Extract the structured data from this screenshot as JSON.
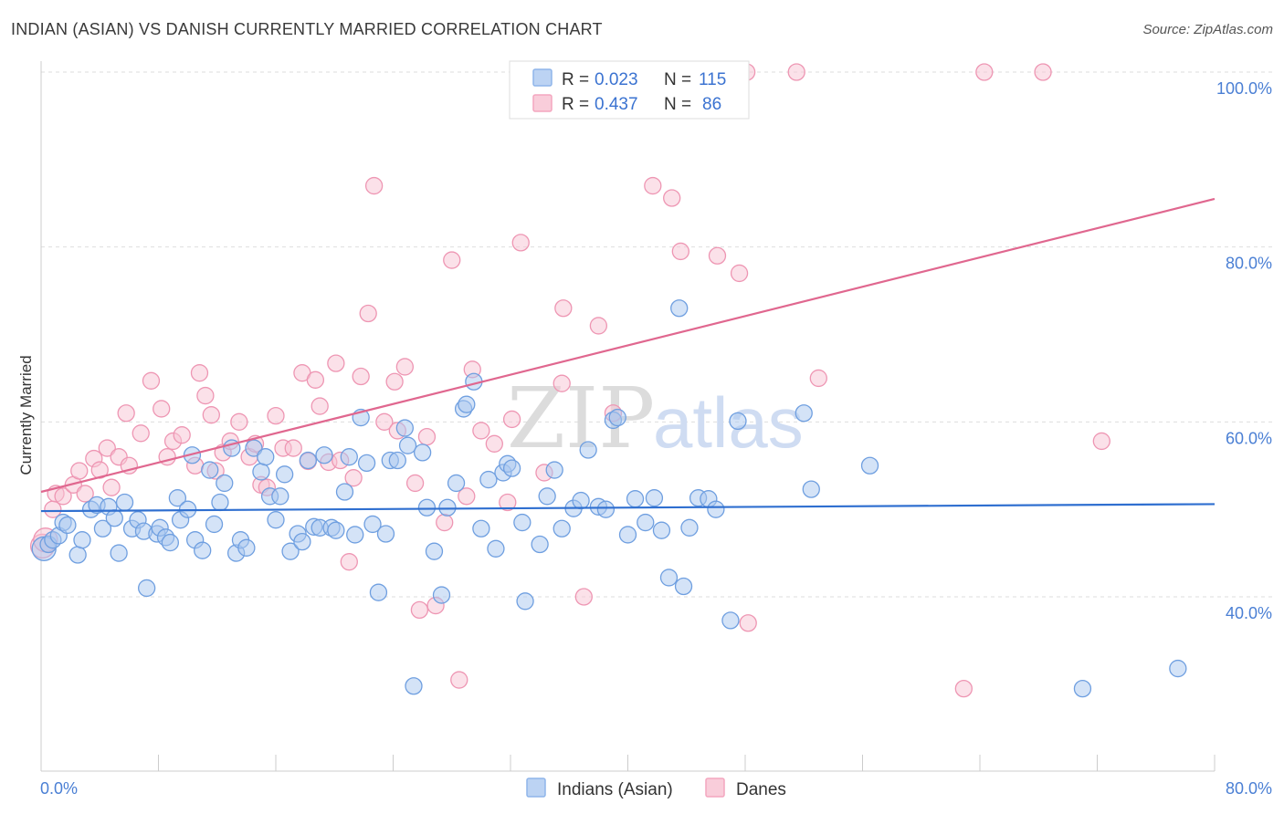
{
  "header": {
    "title": "INDIAN (ASIAN) VS DANISH CURRENTLY MARRIED CORRELATION CHART",
    "source": "Source: ZipAtlas.com"
  },
  "watermark": {
    "part1": "ZIP",
    "part2": "atlas"
  },
  "legend": {
    "rows": [
      {
        "r_label": "R =",
        "r_value": "0.023",
        "n_label": "N =",
        "n_value": "115",
        "color": "#8fb5ea"
      },
      {
        "r_label": "R =",
        "r_value": "0.437",
        "n_label": "N =",
        "n_value": "86",
        "color": "#f4a6bf"
      }
    ]
  },
  "bottom_legend": [
    {
      "label": "Indians (Asian)",
      "color": "#8fb5ea"
    },
    {
      "label": "Danes",
      "color": "#f4a6bf"
    }
  ],
  "chart_data": {
    "type": "scatter",
    "ylabel": "Currently Married",
    "xlim": [
      0,
      80
    ],
    "ylim": [
      20,
      102
    ],
    "x_tick_labels": [
      {
        "value": 0,
        "label": "0.0%"
      },
      {
        "value": 80,
        "label": "80.0%"
      }
    ],
    "y_tick_labels": [
      {
        "value": 100,
        "label": "100.0%"
      },
      {
        "value": 80,
        "label": "80.0%"
      },
      {
        "value": 60,
        "label": "60.0%"
      },
      {
        "value": 40,
        "label": "40.0%"
      }
    ],
    "grid": "horizontal dashed",
    "colors": {
      "indians_fill": "#aac8f0",
      "indians_stroke": "#6f9fe0",
      "indians_line": "#2f6fd0",
      "danes_fill": "#f8c3d3",
      "danes_stroke": "#ee96b3",
      "danes_line": "#e0678f"
    },
    "series": [
      {
        "name": "Indians (Asian)",
        "trend": [
          [
            0,
            49.8
          ],
          [
            80,
            50.6
          ]
        ],
        "points": [
          [
            0.2,
            45.5
          ],
          [
            0.5,
            46
          ],
          [
            0.8,
            46.5
          ],
          [
            1.2,
            47
          ],
          [
            1.5,
            48.5
          ],
          [
            1.8,
            48.2
          ],
          [
            2.5,
            44.8
          ],
          [
            2.8,
            46.5
          ],
          [
            3.4,
            50
          ],
          [
            3.8,
            50.5
          ],
          [
            4.2,
            47.8
          ],
          [
            4.6,
            50.3
          ],
          [
            5,
            49
          ],
          [
            5.3,
            45
          ],
          [
            5.7,
            50.8
          ],
          [
            6.2,
            47.8
          ],
          [
            6.6,
            48.8
          ],
          [
            7,
            47.5
          ],
          [
            7.2,
            41
          ],
          [
            7.9,
            47.2
          ],
          [
            8.1,
            47.9
          ],
          [
            8.5,
            46.8
          ],
          [
            8.8,
            46.2
          ],
          [
            9.3,
            51.3
          ],
          [
            9.5,
            48.8
          ],
          [
            10,
            50
          ],
          [
            10.3,
            56.2
          ],
          [
            10.5,
            46.5
          ],
          [
            11,
            45.3
          ],
          [
            11.5,
            54.5
          ],
          [
            11.8,
            48.3
          ],
          [
            12.2,
            50.8
          ],
          [
            12.5,
            53
          ],
          [
            13,
            57
          ],
          [
            13.3,
            45
          ],
          [
            13.6,
            46.5
          ],
          [
            14,
            45.6
          ],
          [
            14.5,
            57
          ],
          [
            15,
            54.3
          ],
          [
            15.3,
            56
          ],
          [
            15.6,
            51.5
          ],
          [
            16,
            48.8
          ],
          [
            16.3,
            51.5
          ],
          [
            16.6,
            54
          ],
          [
            17,
            45.2
          ],
          [
            17.5,
            47.2
          ],
          [
            17.8,
            46.3
          ],
          [
            18.2,
            55.6
          ],
          [
            18.6,
            48
          ],
          [
            19,
            47.9
          ],
          [
            19.3,
            56.2
          ],
          [
            19.8,
            47.9
          ],
          [
            20.1,
            47.6
          ],
          [
            20.7,
            52
          ],
          [
            21,
            56
          ],
          [
            21.4,
            47.1
          ],
          [
            21.8,
            60.5
          ],
          [
            22.2,
            55.3
          ],
          [
            22.6,
            48.3
          ],
          [
            23,
            40.5
          ],
          [
            23.5,
            47.2
          ],
          [
            23.8,
            55.6
          ],
          [
            24.3,
            55.6
          ],
          [
            24.8,
            59.3
          ],
          [
            25,
            57.3
          ],
          [
            25.4,
            29.8
          ],
          [
            26,
            56.5
          ],
          [
            26.3,
            50.2
          ],
          [
            26.8,
            45.2
          ],
          [
            27.3,
            40.2
          ],
          [
            27.7,
            50.2
          ],
          [
            28.3,
            53
          ],
          [
            28.8,
            61.5
          ],
          [
            29,
            62
          ],
          [
            29.5,
            64.6
          ],
          [
            30,
            47.8
          ],
          [
            30.5,
            53.4
          ],
          [
            31,
            45.5
          ],
          [
            31.5,
            54.2
          ],
          [
            31.8,
            55.2
          ],
          [
            32.1,
            54.7
          ],
          [
            32.8,
            48.5
          ],
          [
            33,
            39.5
          ],
          [
            34,
            46
          ],
          [
            34.5,
            51.5
          ],
          [
            35,
            54.5
          ],
          [
            35.5,
            47.8
          ],
          [
            36.3,
            50.1
          ],
          [
            36.8,
            51
          ],
          [
            37.3,
            56.8
          ],
          [
            38,
            50.3
          ],
          [
            38.5,
            50
          ],
          [
            39,
            60.2
          ],
          [
            39.3,
            60.5
          ],
          [
            40,
            47.1
          ],
          [
            40.5,
            51.2
          ],
          [
            41.2,
            48.5
          ],
          [
            41.8,
            51.3
          ],
          [
            42.3,
            47.6
          ],
          [
            42.8,
            42.2
          ],
          [
            43.5,
            73
          ],
          [
            43.8,
            41.2
          ],
          [
            44.2,
            47.9
          ],
          [
            44.8,
            51.3
          ],
          [
            45.5,
            51.2
          ],
          [
            46,
            50
          ],
          [
            47,
            37.3
          ],
          [
            47.5,
            60.1
          ],
          [
            52,
            61
          ],
          [
            52.5,
            52.3
          ],
          [
            56.5,
            55
          ],
          [
            71,
            29.5
          ],
          [
            77.5,
            31.8
          ]
        ]
      },
      {
        "name": "Danes",
        "trend": [
          [
            0,
            52
          ],
          [
            80,
            85.5
          ]
        ],
        "points": [
          [
            0.1,
            45.8
          ],
          [
            0.3,
            46.5
          ],
          [
            0.8,
            50
          ],
          [
            1,
            51.8
          ],
          [
            1.5,
            51.5
          ],
          [
            2.2,
            52.8
          ],
          [
            2.6,
            54.4
          ],
          [
            3,
            51.8
          ],
          [
            3.6,
            55.8
          ],
          [
            4,
            54.5
          ],
          [
            4.5,
            57
          ],
          [
            4.8,
            52.5
          ],
          [
            5.3,
            56
          ],
          [
            5.8,
            61
          ],
          [
            6,
            55
          ],
          [
            6.8,
            58.7
          ],
          [
            7.5,
            64.7
          ],
          [
            8.2,
            61.5
          ],
          [
            8.6,
            56
          ],
          [
            9,
            57.8
          ],
          [
            9.6,
            58.5
          ],
          [
            10.5,
            55
          ],
          [
            10.8,
            65.6
          ],
          [
            11.2,
            63
          ],
          [
            11.6,
            60.8
          ],
          [
            11.9,
            54.4
          ],
          [
            12.4,
            56.5
          ],
          [
            12.9,
            57.8
          ],
          [
            13.5,
            60
          ],
          [
            14.2,
            56
          ],
          [
            14.6,
            57.5
          ],
          [
            15,
            52.8
          ],
          [
            15.4,
            52.5
          ],
          [
            16,
            60.7
          ],
          [
            16.5,
            57
          ],
          [
            17.2,
            57
          ],
          [
            17.8,
            65.6
          ],
          [
            18.2,
            55.5
          ],
          [
            18.7,
            64.8
          ],
          [
            19,
            61.8
          ],
          [
            19.6,
            55.4
          ],
          [
            20.1,
            66.7
          ],
          [
            20.4,
            55.6
          ],
          [
            21,
            44
          ],
          [
            21.3,
            53.6
          ],
          [
            21.8,
            65.2
          ],
          [
            22.3,
            72.4
          ],
          [
            22.7,
            87
          ],
          [
            23.4,
            60
          ],
          [
            24.1,
            64.6
          ],
          [
            24.3,
            59
          ],
          [
            24.8,
            66.3
          ],
          [
            25.5,
            53
          ],
          [
            25.8,
            38.5
          ],
          [
            26.3,
            58.3
          ],
          [
            26.9,
            39
          ],
          [
            27.5,
            48.5
          ],
          [
            28,
            78.5
          ],
          [
            28.5,
            30.5
          ],
          [
            29,
            51.5
          ],
          [
            29.4,
            66
          ],
          [
            30,
            59
          ],
          [
            30.9,
            57.5
          ],
          [
            31.8,
            50.8
          ],
          [
            32.1,
            60.3
          ],
          [
            32.7,
            80.5
          ],
          [
            34.3,
            54.2
          ],
          [
            35.5,
            64.4
          ],
          [
            35.6,
            73
          ],
          [
            37,
            40
          ],
          [
            37.2,
            96
          ],
          [
            38,
            71
          ],
          [
            39,
            61
          ],
          [
            41.7,
            87
          ],
          [
            43,
            85.6
          ],
          [
            43.6,
            79.5
          ],
          [
            46.1,
            79
          ],
          [
            47,
            100
          ],
          [
            47.6,
            77
          ],
          [
            48.1,
            100
          ],
          [
            48.2,
            37
          ],
          [
            51.5,
            100
          ],
          [
            53,
            65
          ],
          [
            62.9,
            29.5
          ],
          [
            64.3,
            100
          ],
          [
            68.3,
            100
          ],
          [
            72.3,
            57.8
          ]
        ]
      }
    ]
  }
}
